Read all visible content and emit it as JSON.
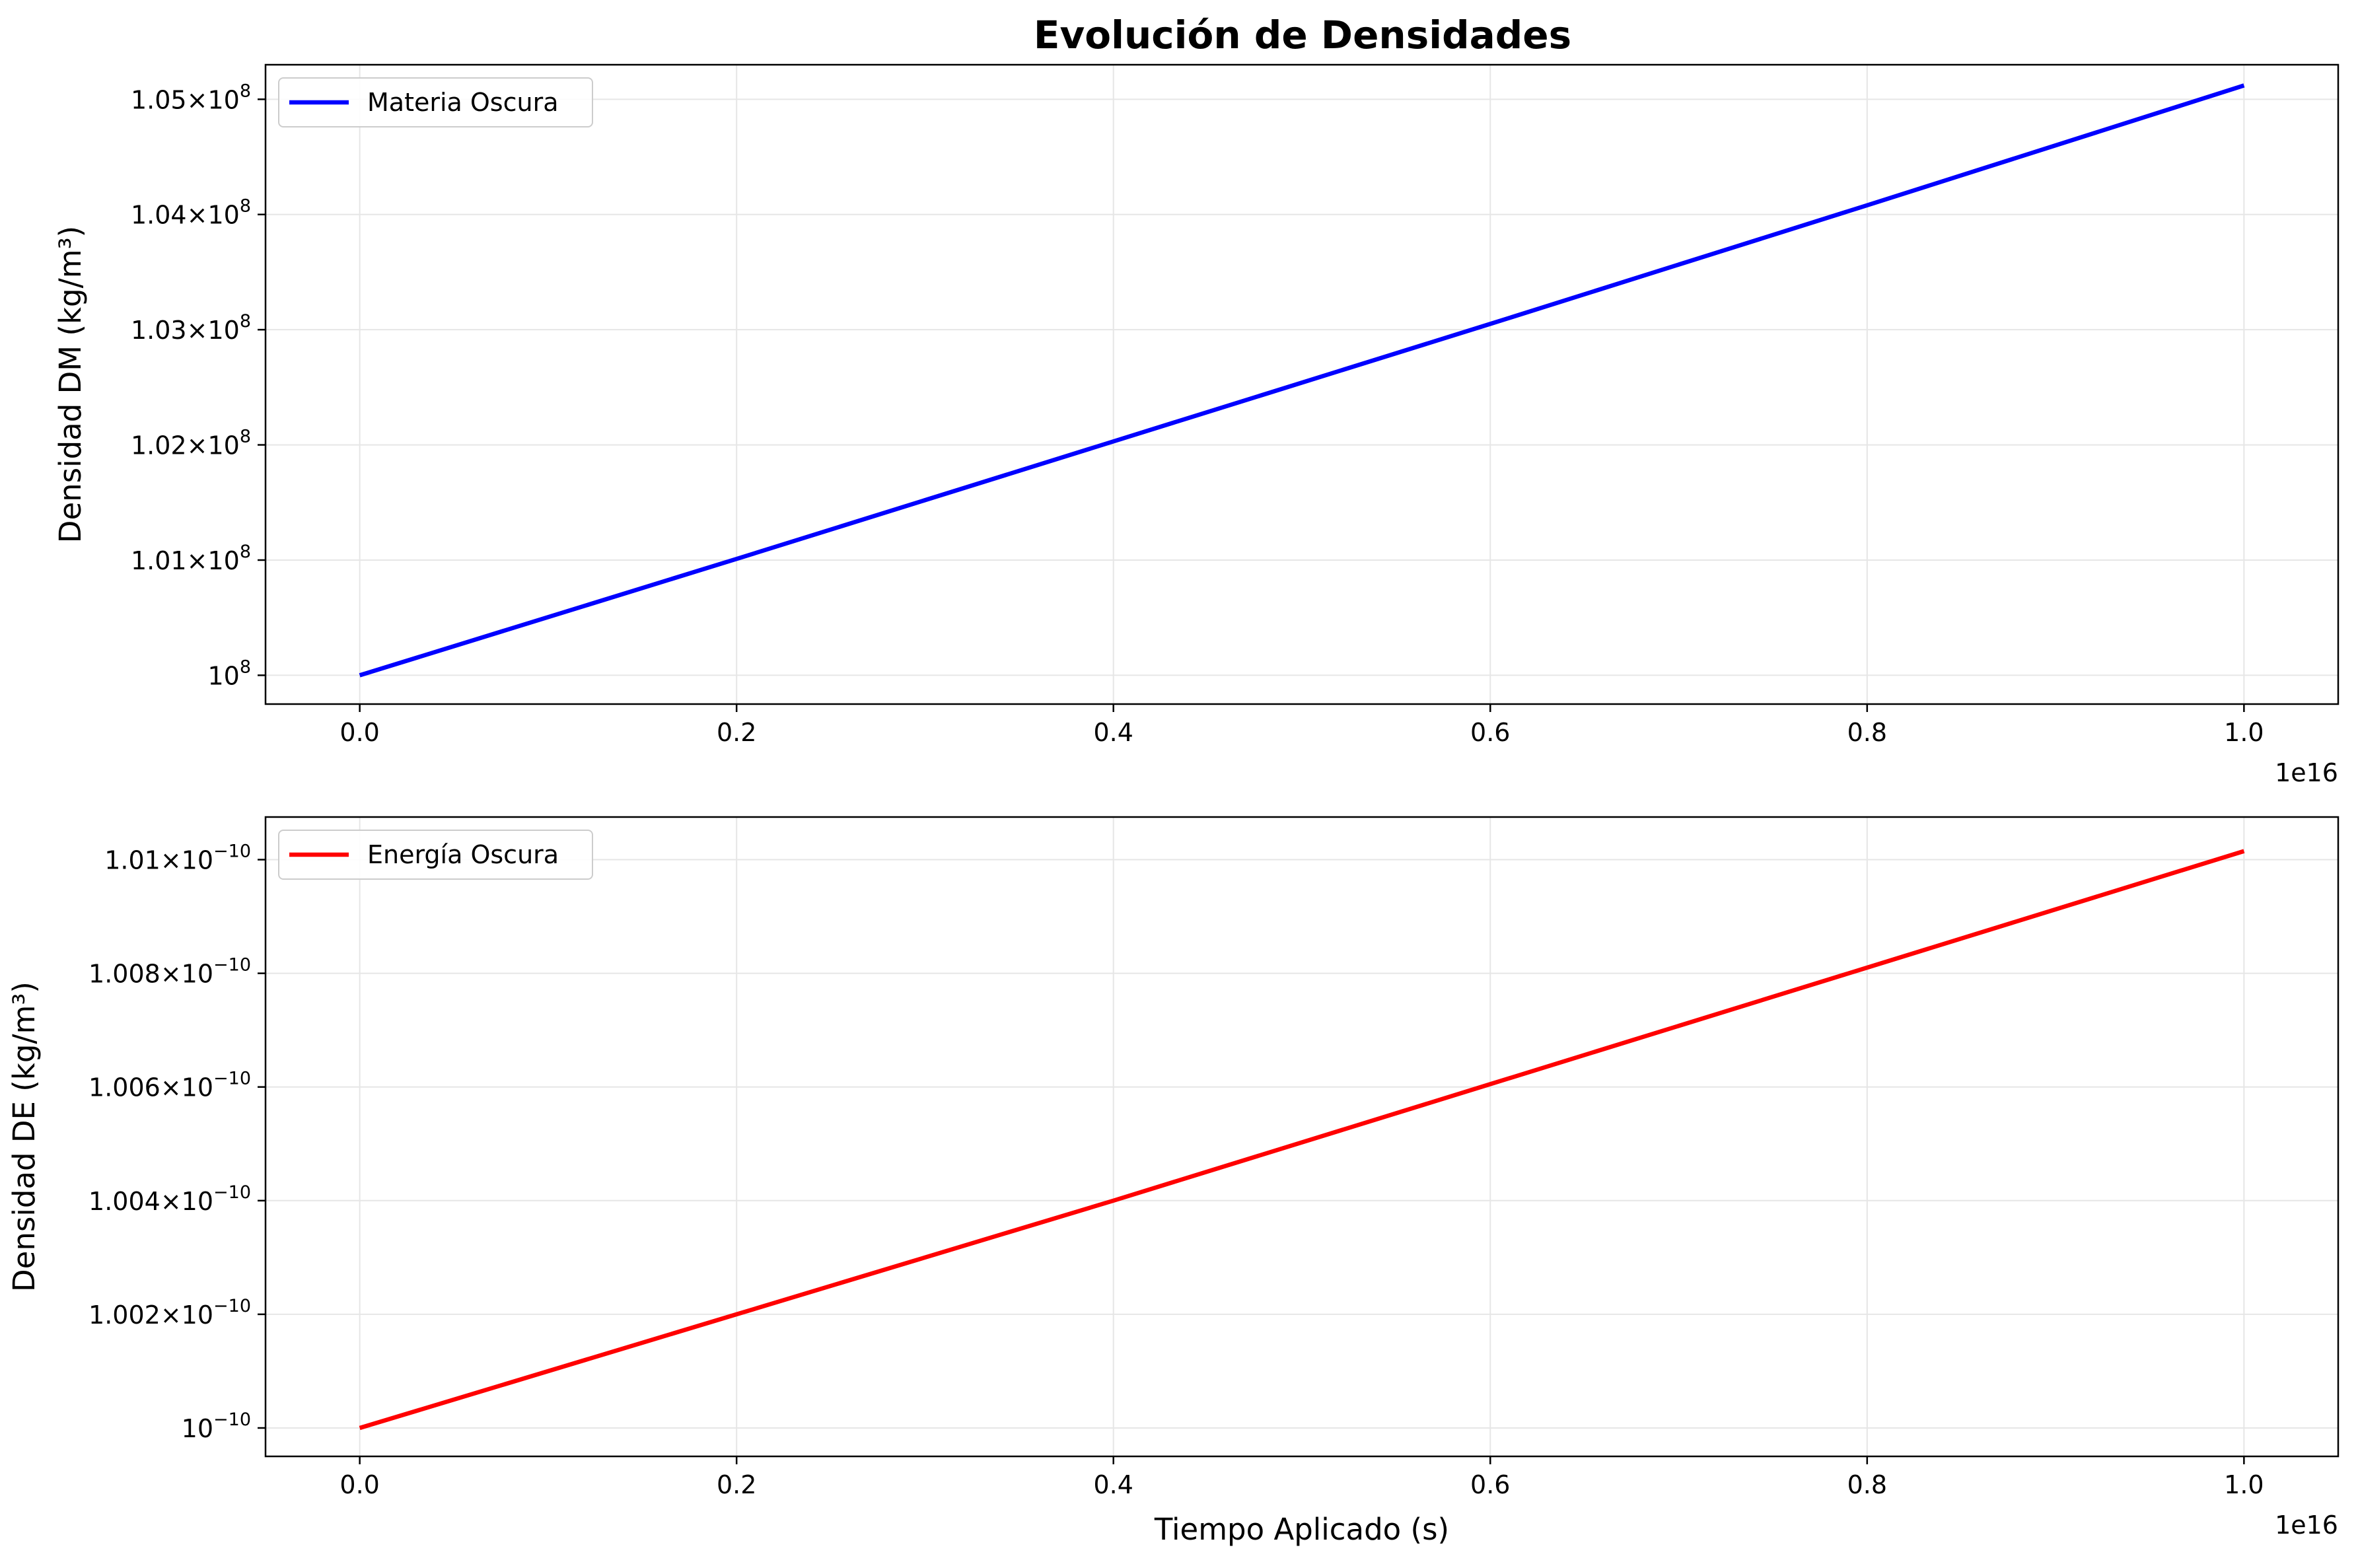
{
  "figure_title": "Evolución de Densidades",
  "colors": {
    "dm": "#0000ff",
    "de": "#ff0000",
    "grid": "#e6e6e6",
    "frame": "#000000"
  },
  "chart_data": [
    {
      "type": "line",
      "title": "Evolución de Densidades",
      "xlabel": "",
      "ylabel": "Densidad DM (kg/m³)",
      "x_offset_label": "1e16",
      "xlim": [
        -0.05,
        1.05
      ],
      "ylim": [
        99750000,
        105300000
      ],
      "grid": true,
      "legend": "upper-left",
      "x_ticks": [
        {
          "value": 0.0,
          "label": "0.0"
        },
        {
          "value": 0.2,
          "label": "0.2"
        },
        {
          "value": 0.4,
          "label": "0.4"
        },
        {
          "value": 0.6,
          "label": "0.6"
        },
        {
          "value": 0.8,
          "label": "0.8"
        },
        {
          "value": 1.0,
          "label": "1.0"
        }
      ],
      "y_ticks": [
        {
          "value": 100000000,
          "mant": "",
          "exp": "8"
        },
        {
          "value": 101000000,
          "mant": "1.01",
          "exp": "8"
        },
        {
          "value": 102000000,
          "mant": "1.02",
          "exp": "8"
        },
        {
          "value": 103000000,
          "mant": "1.03",
          "exp": "8"
        },
        {
          "value": 104000000,
          "mant": "1.04",
          "exp": "8"
        },
        {
          "value": 105000000,
          "mant": "1.05",
          "exp": "8"
        }
      ],
      "series": [
        {
          "name": "Materia Oscura",
          "color": "#0000ff",
          "x": [
            0.0,
            0.2,
            0.4,
            0.6,
            0.8,
            1.0
          ],
          "y": [
            100000000,
            101010000,
            102030000,
            103050000,
            104080000,
            105120000
          ]
        }
      ]
    },
    {
      "type": "line",
      "xlabel": "Tiempo Aplicado (s)",
      "ylabel": "Densidad DE (kg/m³)",
      "x_offset_label": "1e16",
      "xlim": [
        -0.05,
        1.05
      ],
      "ylim": [
        9.995e-11,
        1.01075e-10
      ],
      "grid": true,
      "legend": "upper-left",
      "x_ticks": [
        {
          "value": 0.0,
          "label": "0.0"
        },
        {
          "value": 0.2,
          "label": "0.2"
        },
        {
          "value": 0.4,
          "label": "0.4"
        },
        {
          "value": 0.6,
          "label": "0.6"
        },
        {
          "value": 0.8,
          "label": "0.8"
        },
        {
          "value": 1.0,
          "label": "1.0"
        }
      ],
      "y_ticks": [
        {
          "value": 1e-10,
          "mant": "",
          "exp": "−10"
        },
        {
          "value": 1.002e-10,
          "mant": "1.002",
          "exp": "−10"
        },
        {
          "value": 1.004e-10,
          "mant": "1.004",
          "exp": "−10"
        },
        {
          "value": 1.006e-10,
          "mant": "1.006",
          "exp": "−10"
        },
        {
          "value": 1.008e-10,
          "mant": "1.008",
          "exp": "−10"
        },
        {
          "value": 1.01e-10,
          "mant": "1.01",
          "exp": "−10"
        }
      ],
      "series": [
        {
          "name": "Energía Oscura",
          "color": "#ff0000",
          "x": [
            0.0,
            0.2,
            0.4,
            0.6,
            0.8,
            1.0
          ],
          "y": [
            1e-10,
            1.002e-10,
            1.004e-10,
            1.00605e-10,
            1.0081e-10,
            1.01015e-10
          ]
        }
      ]
    }
  ]
}
